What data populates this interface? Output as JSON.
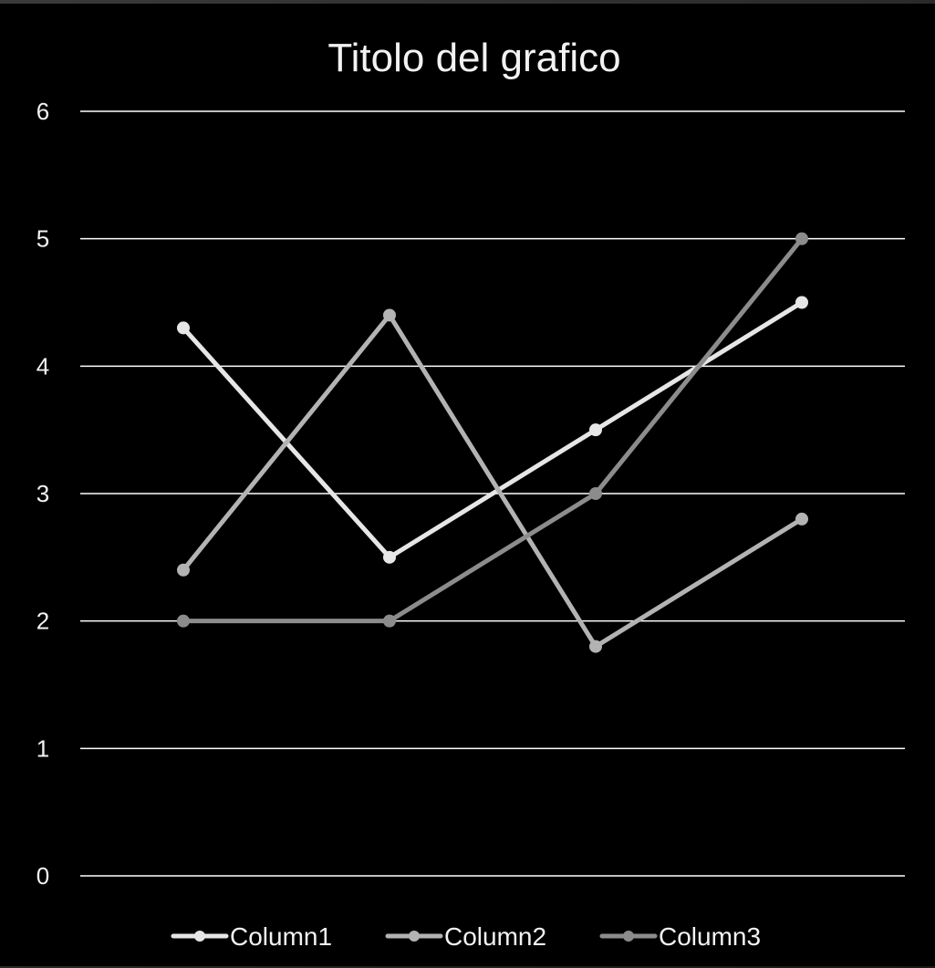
{
  "chart_data": {
    "type": "line",
    "title": "Titolo del grafico",
    "xlabel": "",
    "ylabel": "",
    "categories": [
      "",
      "",
      "",
      ""
    ],
    "ylim": [
      0,
      6
    ],
    "yticks": [
      0,
      1,
      2,
      3,
      4,
      5,
      6
    ],
    "grid": true,
    "legend": "bottom",
    "series": [
      {
        "name": "Column1",
        "values": [
          4.3,
          2.5,
          3.5,
          4.5
        ],
        "color": "#e6e6e6"
      },
      {
        "name": "Column2",
        "values": [
          2.4,
          4.4,
          1.8,
          2.8
        ],
        "color": "#b3b3b3"
      },
      {
        "name": "Column3",
        "values": [
          2.0,
          2.0,
          3.0,
          5.0
        ],
        "color": "#8c8c8c"
      }
    ]
  },
  "colors": {
    "background": "#000000",
    "grid": "#ffffff",
    "text": "#f2f2f2"
  }
}
